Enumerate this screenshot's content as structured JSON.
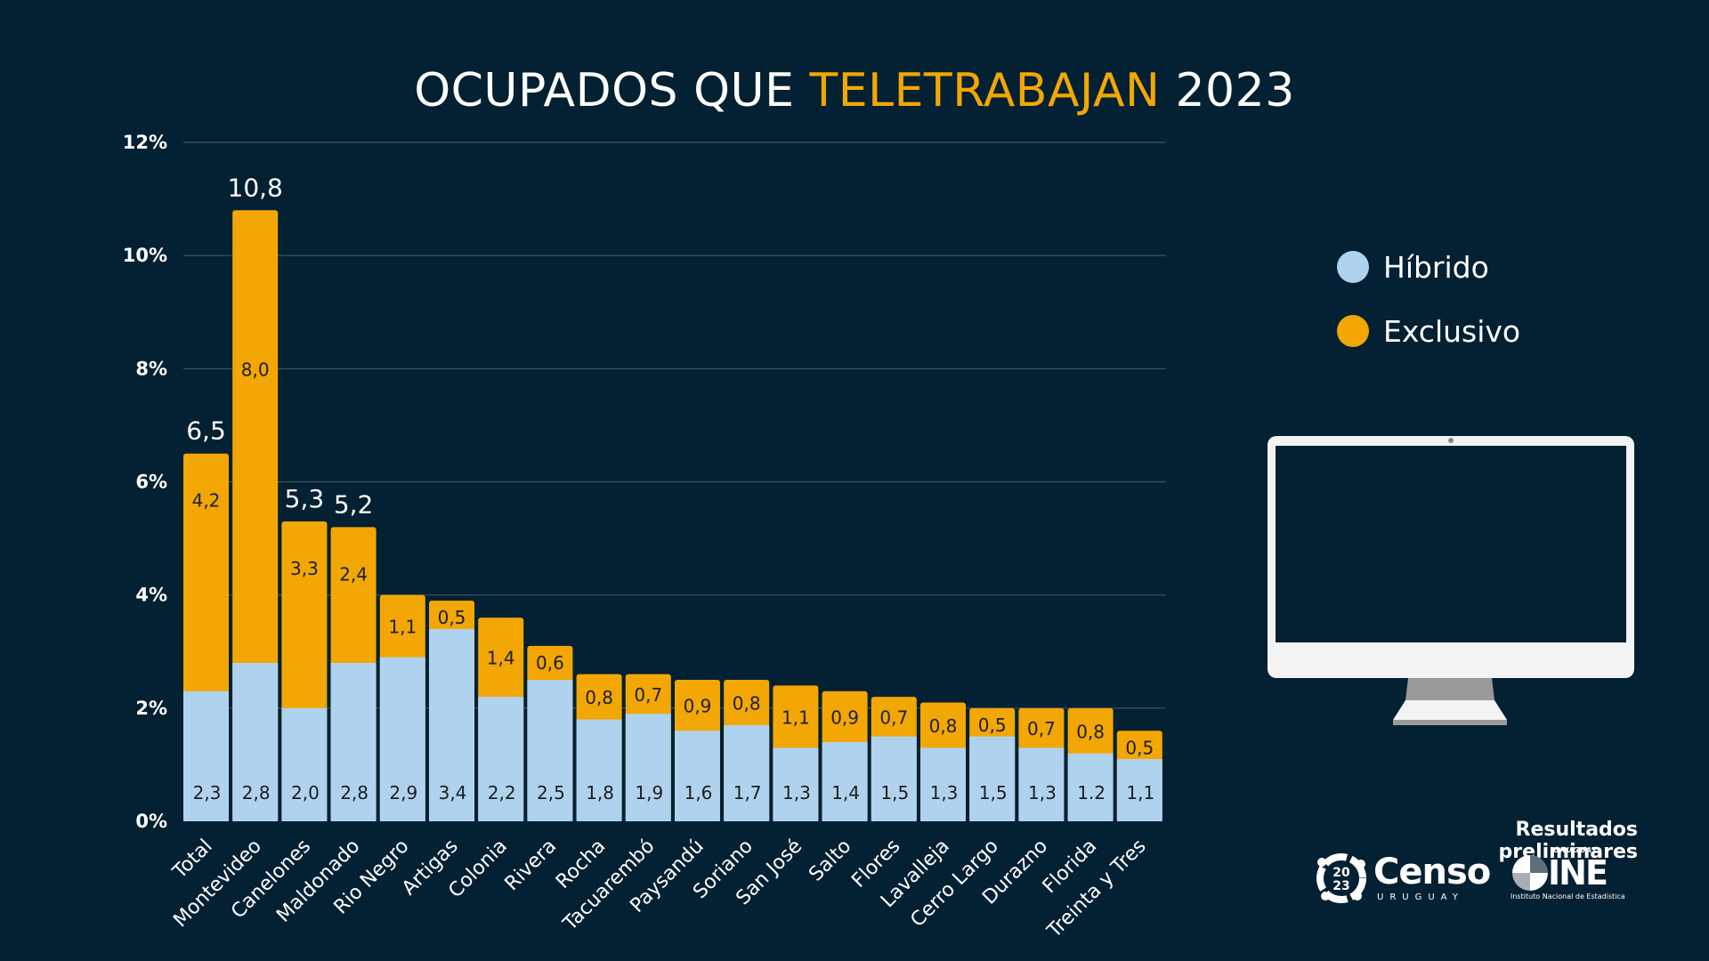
{
  "title": {
    "part1": "OCUPADOS QUE ",
    "highlight": "TELETRABAJAN",
    "part2": " 2023"
  },
  "colors": {
    "background": "#032132",
    "hibrido": "#afd3ee",
    "exclusivo": "#f2a705",
    "gridline": "#3b5566"
  },
  "legend": {
    "items": [
      {
        "label": "Híbrido",
        "color": "#afd3ee"
      },
      {
        "label": "Exclusivo",
        "color": "#f2a705"
      }
    ]
  },
  "footer": {
    "title": "Resultados preliminares",
    "censo_logo": {
      "year_top": "20",
      "year_bottom": "23",
      "word": "Censo",
      "sub": "URUGUAY"
    },
    "ine_logo": {
      "top": "URUGUAY",
      "word": "INE",
      "sub": "Instituto Nacional de Estadística"
    }
  },
  "decor": {
    "monitor_icon": "desktop-monitor-icon"
  },
  "chart_data": {
    "type": "bar",
    "stacked": true,
    "title": "OCUPADOS QUE TELETRABAJAN 2023",
    "xlabel": "",
    "ylabel": "",
    "ylim": [
      0,
      12
    ],
    "yticks": [
      0,
      2,
      4,
      6,
      8,
      10,
      12
    ],
    "ytick_labels": [
      "0%",
      "2%",
      "4%",
      "6%",
      "8%",
      "10%",
      "12%"
    ],
    "grid": true,
    "legend_position": "right",
    "categories": [
      "Total",
      "Montevideo",
      "Canelones",
      "Maldonado",
      "Rio Negro",
      "Artigas",
      "Colonia",
      "Rivera",
      "Rocha",
      "Tacuarembó",
      "Paysandú",
      "Soriano",
      "San José",
      "Salto",
      "Flores",
      "Lavalleja",
      "Cerro Largo",
      "Durazno",
      "Florida",
      "Treinta y Tres"
    ],
    "series": [
      {
        "name": "Híbrido",
        "values": [
          2.3,
          2.8,
          2.0,
          2.8,
          2.9,
          3.4,
          2.2,
          2.5,
          1.8,
          1.9,
          1.6,
          1.7,
          1.3,
          1.4,
          1.5,
          1.3,
          1.5,
          1.3,
          1.2,
          1.1
        ],
        "labels": [
          "2,3",
          "2,8",
          "2,0",
          "2,8",
          "2,9",
          "3,4",
          "2,2",
          "2,5",
          "1,8",
          "1,9",
          "1,6",
          "1,7",
          "1,3",
          "1,4",
          "1,5",
          "1,3",
          "1,5",
          "1,3",
          "1.2",
          "1,1"
        ]
      },
      {
        "name": "Exclusivo",
        "values": [
          4.2,
          8.0,
          3.3,
          2.4,
          1.1,
          0.5,
          1.4,
          0.6,
          0.8,
          0.7,
          0.9,
          0.8,
          1.1,
          0.9,
          0.7,
          0.8,
          0.5,
          0.7,
          0.8,
          0.5
        ],
        "labels": [
          "4,2",
          "8,0",
          "3,3",
          "2,4",
          "1,1",
          "0,5",
          "1,4",
          "0,6",
          "0,8",
          "0,7",
          "0,9",
          "0,8",
          "1,1",
          "0,9",
          "0,7",
          "0,8",
          "0,5",
          "0,7",
          "0,8",
          "0,5"
        ]
      }
    ],
    "total_labels": [
      {
        "index": 0,
        "value": 6.5,
        "label": "6,5"
      },
      {
        "index": 1,
        "value": 10.8,
        "label": "10,8"
      },
      {
        "index": 2,
        "value": 5.3,
        "label": "5,3"
      },
      {
        "index": 3,
        "value": 5.2,
        "label": "5,2"
      }
    ]
  }
}
